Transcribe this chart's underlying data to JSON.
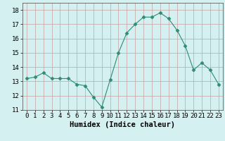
{
  "x": [
    0,
    1,
    2,
    3,
    4,
    5,
    6,
    7,
    8,
    9,
    10,
    11,
    12,
    13,
    14,
    15,
    16,
    17,
    18,
    19,
    20,
    21,
    22,
    23
  ],
  "y": [
    13.2,
    13.3,
    13.6,
    13.2,
    13.2,
    13.2,
    12.8,
    12.7,
    11.9,
    11.2,
    13.1,
    15.0,
    16.4,
    17.0,
    17.5,
    17.5,
    17.8,
    17.4,
    16.6,
    15.5,
    13.8,
    14.3,
    13.8,
    12.8
  ],
  "line_color": "#2e8b74",
  "marker": "D",
  "marker_size": 2.5,
  "bg_color": "#d4f0f0",
  "grid_color": "#c8a0a0",
  "xlabel": "Humidex (Indice chaleur)",
  "xlim": [
    -0.5,
    23.5
  ],
  "ylim": [
    11.0,
    18.5
  ],
  "yticks": [
    11,
    12,
    13,
    14,
    15,
    16,
    17,
    18
  ],
  "xtick_labels": [
    "0",
    "1",
    "2",
    "3",
    "4",
    "5",
    "6",
    "7",
    "8",
    "9",
    "10",
    "11",
    "12",
    "13",
    "14",
    "15",
    "16",
    "17",
    "18",
    "19",
    "20",
    "21",
    "22",
    "23"
  ],
  "xlabel_fontsize": 7.5,
  "tick_fontsize": 6.5
}
